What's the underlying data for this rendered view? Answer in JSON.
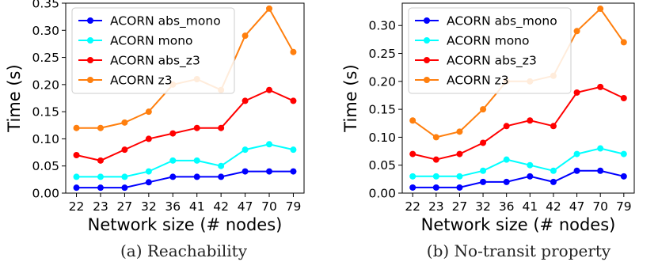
{
  "chart_data": [
    {
      "type": "line",
      "caption": "(a) Reachability",
      "xlabel": "Network size (# nodes)",
      "ylabel": "Time (s)",
      "categories": [
        "22",
        "23",
        "27",
        "32",
        "36",
        "41",
        "42",
        "47",
        "70",
        "79"
      ],
      "ylim": [
        0,
        0.35
      ],
      "yticks": [
        "0.00",
        "0.05",
        "0.10",
        "0.15",
        "0.20",
        "0.25",
        "0.30",
        "0.35"
      ],
      "legend": "top-left",
      "grid": false,
      "series": [
        {
          "name": "ACORN abs_mono",
          "color": "#0000ff",
          "values": [
            0.01,
            0.01,
            0.01,
            0.02,
            0.03,
            0.03,
            0.03,
            0.04,
            0.04,
            0.04
          ]
        },
        {
          "name": "ACORN mono",
          "color": "#00ffff",
          "values": [
            0.03,
            0.03,
            0.03,
            0.04,
            0.06,
            0.06,
            0.05,
            0.08,
            0.09,
            0.08
          ]
        },
        {
          "name": "ACORN abs_z3",
          "color": "#ff0000",
          "values": [
            0.07,
            0.06,
            0.08,
            0.1,
            0.11,
            0.12,
            0.12,
            0.17,
            0.19,
            0.17
          ]
        },
        {
          "name": "ACORN z3",
          "color": "#ff7f0e",
          "values": [
            0.12,
            0.12,
            0.13,
            0.15,
            0.2,
            0.21,
            0.19,
            0.29,
            0.34,
            0.26
          ]
        }
      ]
    },
    {
      "type": "line",
      "caption": "(b) No-transit property",
      "xlabel": "Network size (# nodes)",
      "ylabel": "Time (s)",
      "categories": [
        "22",
        "23",
        "27",
        "32",
        "36",
        "41",
        "42",
        "47",
        "70",
        "79"
      ],
      "ylim": [
        0,
        0.34
      ],
      "yticks": [
        "0.00",
        "0.05",
        "0.10",
        "0.15",
        "0.20",
        "0.25",
        "0.30"
      ],
      "legend": "top-left",
      "grid": false,
      "series": [
        {
          "name": "ACORN abs_mono",
          "color": "#0000ff",
          "values": [
            0.01,
            0.01,
            0.01,
            0.02,
            0.02,
            0.03,
            0.02,
            0.04,
            0.04,
            0.03
          ]
        },
        {
          "name": "ACORN mono",
          "color": "#00ffff",
          "values": [
            0.03,
            0.03,
            0.03,
            0.04,
            0.06,
            0.05,
            0.04,
            0.07,
            0.08,
            0.07
          ]
        },
        {
          "name": "ACORN abs_z3",
          "color": "#ff0000",
          "values": [
            0.07,
            0.06,
            0.07,
            0.09,
            0.12,
            0.13,
            0.12,
            0.18,
            0.19,
            0.17
          ]
        },
        {
          "name": "ACORN z3",
          "color": "#ff7f0e",
          "values": [
            0.13,
            0.1,
            0.11,
            0.15,
            0.2,
            0.2,
            0.21,
            0.29,
            0.33,
            0.27
          ]
        }
      ]
    }
  ]
}
